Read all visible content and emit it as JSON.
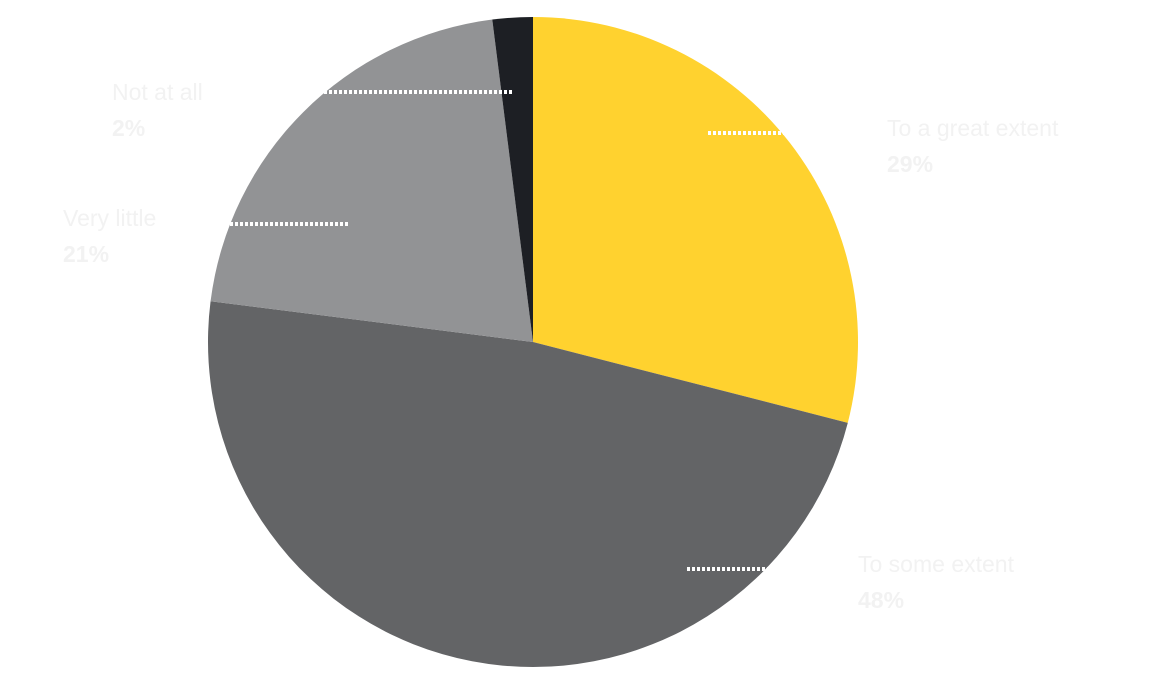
{
  "chart_data": {
    "type": "pie",
    "title": "",
    "slices": [
      {
        "label": "To a great extent",
        "value": 29,
        "value_label": "29%",
        "color": "#ffd22f"
      },
      {
        "label": "To some extent",
        "value": 48,
        "value_label": "48%",
        "color": "#636466"
      },
      {
        "label": "Very little",
        "value": 21,
        "value_label": "21%",
        "color": "#929395"
      },
      {
        "label": "Not at all",
        "value": 2,
        "value_label": "2%",
        "color": "#1d1f24"
      }
    ],
    "start": "12 o'clock",
    "direction": "clockwise"
  }
}
